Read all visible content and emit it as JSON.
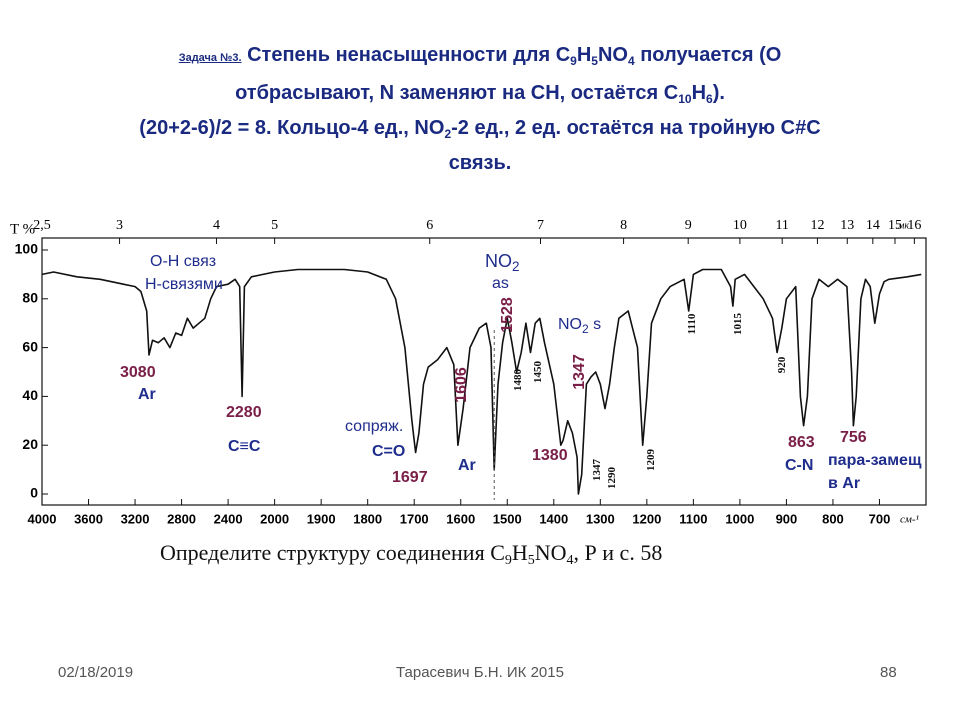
{
  "header": {
    "task": "Задача №3.",
    "lines": [
      [
        {
          "text": " Степень ненасыщенности для C"
        },
        {
          "sub": "9"
        },
        {
          "text": "H"
        },
        {
          "sub": "5"
        },
        {
          "text": "NO"
        },
        {
          "sub": "4"
        },
        {
          "text": " получается (O"
        }
      ],
      [
        {
          "text": "отбрасывают, N заменяют на CH, остаётся C"
        },
        {
          "sub": "10"
        },
        {
          "text": "H"
        },
        {
          "sub": "6"
        },
        {
          "text": ")."
        }
      ],
      [
        {
          "text": "(20+2-6)/2 = 8. Кольцо-4 ед., NO"
        },
        {
          "sub": "2"
        },
        {
          "text": "-2 ед., 2 ед. остаётся на тройную C#C"
        }
      ],
      [
        {
          "text": "связь."
        }
      ]
    ]
  },
  "chart_data": {
    "type": "line",
    "y_label": "T %",
    "x_label": "см-¹",
    "x2_label": "мк",
    "xlim": [
      4000,
      600
    ],
    "ylim": [
      0,
      100
    ],
    "xticks": [
      4000,
      3600,
      3200,
      2800,
      2400,
      2000,
      1900,
      1800,
      1700,
      1600,
      1500,
      1400,
      1300,
      1200,
      1100,
      1000,
      900,
      800,
      700
    ],
    "yticks": [
      0,
      20,
      40,
      60,
      80,
      100
    ],
    "x2ticks": [
      {
        "value": 2.5,
        "label": "2,5"
      },
      3,
      4,
      5,
      6,
      7,
      8,
      9,
      10,
      11,
      12,
      13,
      14,
      15,
      16
    ],
    "series": [
      {
        "color": "#111111",
        "x": [
          4000,
          3900,
          3700,
          3500,
          3300,
          3200,
          3150,
          3100,
          3080,
          3050,
          3000,
          2950,
          2900,
          2850,
          2800,
          2750,
          2700,
          2650,
          2600,
          2550,
          2500,
          2400,
          2340,
          2300,
          2280,
          2260,
          2200,
          2100,
          2000,
          1950,
          1900,
          1850,
          1800,
          1760,
          1740,
          1720,
          1705,
          1697,
          1690,
          1680,
          1670,
          1650,
          1630,
          1615,
          1606,
          1595,
          1580,
          1560,
          1545,
          1535,
          1528,
          1520,
          1510,
          1500,
          1490,
          1480,
          1470,
          1460,
          1450,
          1440,
          1430,
          1420,
          1400,
          1385,
          1380,
          1370,
          1360,
          1350,
          1347,
          1340,
          1330,
          1320,
          1310,
          1300,
          1290,
          1280,
          1270,
          1260,
          1240,
          1220,
          1209,
          1200,
          1190,
          1170,
          1150,
          1120,
          1110,
          1100,
          1080,
          1040,
          1020,
          1015,
          1010,
          990,
          970,
          950,
          930,
          920,
          910,
          900,
          880,
          870,
          863,
          855,
          845,
          830,
          810,
          790,
          770,
          760,
          756,
          750,
          740,
          730,
          720,
          710,
          700,
          690,
          680,
          640,
          610
        ],
        "values": [
          90,
          91,
          89,
          88,
          86,
          85,
          83,
          75,
          57,
          63,
          62,
          64,
          60,
          66,
          65,
          72,
          68,
          70,
          72,
          80,
          85,
          86,
          88,
          85,
          40,
          85,
          89,
          90,
          91,
          92,
          92,
          92,
          91,
          88,
          80,
          60,
          30,
          17,
          25,
          45,
          52,
          55,
          60,
          53,
          20,
          35,
          60,
          68,
          70,
          60,
          10,
          45,
          62,
          72,
          62,
          50,
          58,
          70,
          58,
          70,
          72,
          62,
          45,
          20,
          22,
          30,
          25,
          15,
          0,
          8,
          45,
          48,
          50,
          45,
          35,
          45,
          60,
          72,
          75,
          60,
          20,
          40,
          70,
          80,
          85,
          88,
          75,
          90,
          92,
          92,
          85,
          77,
          88,
          90,
          85,
          80,
          72,
          58,
          68,
          80,
          85,
          40,
          28,
          40,
          80,
          88,
          85,
          88,
          85,
          50,
          28,
          40,
          80,
          88,
          85,
          70,
          82,
          87,
          88,
          89,
          90
        ]
      }
    ],
    "annotations": [
      {
        "text": "O-H связ",
        "color": "#1f2d8c"
      },
      {
        "text": "H-связями",
        "color": "#1f2d8c"
      },
      {
        "text": "3080",
        "color": "#7a2048"
      },
      {
        "text": "Ar",
        "color": "#1f2d8c"
      },
      {
        "text": "2280",
        "color": "#7a2048"
      },
      {
        "text": "C≡C",
        "color": "#1f2d8c"
      },
      {
        "text": "сопряж.",
        "color": "#1f2d8c"
      },
      {
        "text": "C=O",
        "color": "#1f2d8c"
      },
      {
        "text": "1697",
        "color": "#7a2048"
      },
      {
        "text": "1606",
        "color": "#7a2048"
      },
      {
        "text": "Ar",
        "color": "#1f2d8c"
      },
      {
        "text": "NO",
        "sub": "2",
        "color": "#1f2d8c"
      },
      {
        "text": "as",
        "color": "#1f2d8c"
      },
      {
        "text": "1528",
        "color": "#7a2048"
      },
      {
        "text": "1480",
        "color": "#111111"
      },
      {
        "text": "1450",
        "color": "#111111"
      },
      {
        "text": "NO",
        "sub": "2",
        "tail": " s",
        "color": "#1f2d8c"
      },
      {
        "text": "1347",
        "color": "#7a2048"
      },
      {
        "text": "1380",
        "color": "#7a2048"
      },
      {
        "text": "1347",
        "color": "#111111"
      },
      {
        "text": "1290",
        "color": "#111111"
      },
      {
        "text": "1209",
        "color": "#111111"
      },
      {
        "text": "1110",
        "color": "#111111"
      },
      {
        "text": "1015",
        "color": "#111111"
      },
      {
        "text": "920",
        "color": "#111111"
      },
      {
        "text": "863",
        "color": "#7a2048"
      },
      {
        "text": "C-N",
        "color": "#1f2d8c"
      },
      {
        "text": "756",
        "color": "#7a2048"
      },
      {
        "text": "пара-замещ",
        "color": "#1f2d8c"
      },
      {
        "text": "в Ar",
        "color": "#1f2d8c"
      }
    ]
  },
  "caption": [
    {
      "text": "Определите структуру соединения C"
    },
    {
      "sub": "9"
    },
    {
      "text": "H"
    },
    {
      "sub": "5"
    },
    {
      "text": "NO"
    },
    {
      "sub": "4"
    },
    {
      "text": ", Р и с.  58"
    }
  ],
  "footer": {
    "date": "02/18/2019",
    "author": "Тарасевич Б.Н. ИК 2015",
    "page": "88"
  }
}
